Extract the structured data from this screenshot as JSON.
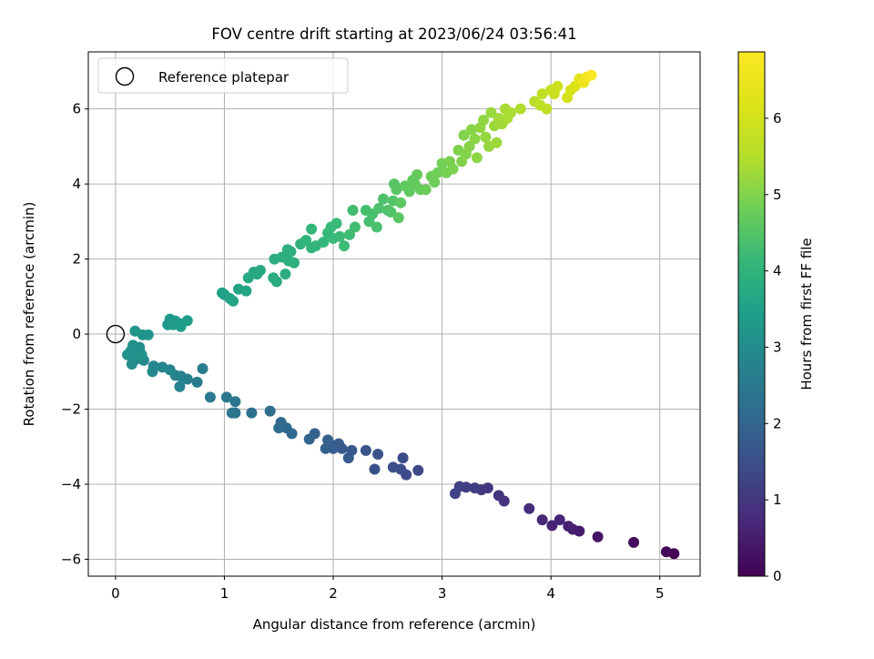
{
  "chart_data": {
    "type": "scatter",
    "title": "FOV centre drift starting at 2023/06/24 03:56:41",
    "xlabel": "Angular distance from reference (arcmin)",
    "ylabel": "Rotation from reference (arcmin)",
    "xlim": [
      -0.25,
      5.37
    ],
    "ylim": [
      -6.45,
      7.52
    ],
    "xticks": [
      0,
      1,
      2,
      3,
      4,
      5
    ],
    "yticks": [
      -6,
      -4,
      -2,
      0,
      2,
      4,
      6
    ],
    "x_tick_labels": [
      "0",
      "1",
      "2",
      "3",
      "4",
      "5"
    ],
    "y_tick_labels": [
      "−6",
      "−4",
      "−2",
      "0",
      "2",
      "4",
      "6"
    ],
    "grid": true,
    "legend": {
      "placement": "top-left",
      "entries": [
        "Reference platepar"
      ]
    },
    "reference_point": {
      "x": 0,
      "y": 0
    },
    "colorbar": {
      "label": "Hours from first FF file",
      "colormap": "viridis",
      "range": [
        0,
        6.87
      ],
      "ticks": [
        0,
        1,
        2,
        3,
        4,
        5,
        6
      ],
      "tick_labels": [
        "0",
        "1",
        "2",
        "3",
        "4",
        "5",
        "6"
      ]
    },
    "points": [
      {
        "x": 5.13,
        "y": -5.85,
        "c": 0.02
      },
      {
        "x": 5.06,
        "y": -5.8,
        "c": 0.08
      },
      {
        "x": 4.76,
        "y": -5.55,
        "c": 0.2
      },
      {
        "x": 4.43,
        "y": -5.4,
        "c": 0.33
      },
      {
        "x": 4.26,
        "y": -5.25,
        "c": 0.43
      },
      {
        "x": 4.2,
        "y": -5.2,
        "c": 0.5
      },
      {
        "x": 4.16,
        "y": -5.12,
        "c": 0.55
      },
      {
        "x": 4.01,
        "y": -5.1,
        "c": 0.62
      },
      {
        "x": 3.92,
        "y": -4.95,
        "c": 0.7
      },
      {
        "x": 4.08,
        "y": -4.95,
        "c": 0.66
      },
      {
        "x": 3.8,
        "y": -4.65,
        "c": 0.8
      },
      {
        "x": 3.57,
        "y": -4.45,
        "c": 0.9
      },
      {
        "x": 3.52,
        "y": -4.3,
        "c": 0.95
      },
      {
        "x": 3.42,
        "y": -4.1,
        "c": 1.02
      },
      {
        "x": 3.36,
        "y": -4.15,
        "c": 1.05
      },
      {
        "x": 3.3,
        "y": -4.1,
        "c": 1.1
      },
      {
        "x": 3.22,
        "y": -4.08,
        "c": 1.15
      },
      {
        "x": 3.16,
        "y": -4.06,
        "c": 1.2
      },
      {
        "x": 3.12,
        "y": -4.25,
        "c": 1.25
      },
      {
        "x": 2.78,
        "y": -3.63,
        "c": 1.35
      },
      {
        "x": 2.67,
        "y": -3.75,
        "c": 1.4
      },
      {
        "x": 2.62,
        "y": -3.6,
        "c": 1.45
      },
      {
        "x": 2.55,
        "y": -3.55,
        "c": 1.5
      },
      {
        "x": 2.38,
        "y": -3.6,
        "c": 1.55
      },
      {
        "x": 2.64,
        "y": -3.3,
        "c": 1.48
      },
      {
        "x": 2.41,
        "y": -3.2,
        "c": 1.6
      },
      {
        "x": 2.3,
        "y": -3.1,
        "c": 1.65
      },
      {
        "x": 2.17,
        "y": -3.1,
        "c": 1.7
      },
      {
        "x": 2.14,
        "y": -3.3,
        "c": 1.72
      },
      {
        "x": 2.08,
        "y": -3.05,
        "c": 1.76
      },
      {
        "x": 2.05,
        "y": -2.92,
        "c": 1.8
      },
      {
        "x": 1.98,
        "y": -2.95,
        "c": 1.84
      },
      {
        "x": 2.0,
        "y": -3.05,
        "c": 1.86
      },
      {
        "x": 1.93,
        "y": -3.05,
        "c": 1.88
      },
      {
        "x": 1.95,
        "y": -2.82,
        "c": 1.9
      },
      {
        "x": 1.83,
        "y": -2.65,
        "c": 1.95
      },
      {
        "x": 1.78,
        "y": -2.8,
        "c": 1.98
      },
      {
        "x": 1.62,
        "y": -2.65,
        "c": 2.05
      },
      {
        "x": 1.57,
        "y": -2.5,
        "c": 2.1
      },
      {
        "x": 1.52,
        "y": -2.35,
        "c": 2.15
      },
      {
        "x": 1.5,
        "y": -2.5,
        "c": 2.18
      },
      {
        "x": 1.42,
        "y": -2.05,
        "c": 2.22
      },
      {
        "x": 1.25,
        "y": -2.1,
        "c": 2.3
      },
      {
        "x": 1.1,
        "y": -2.1,
        "c": 2.38
      },
      {
        "x": 1.07,
        "y": -2.1,
        "c": 2.4
      },
      {
        "x": 1.1,
        "y": -1.8,
        "c": 2.42
      },
      {
        "x": 1.02,
        "y": -1.68,
        "c": 2.45
      },
      {
        "x": 0.87,
        "y": -1.68,
        "c": 2.5
      },
      {
        "x": 0.75,
        "y": -1.28,
        "c": 2.58
      },
      {
        "x": 0.8,
        "y": -0.92,
        "c": 2.62
      },
      {
        "x": 0.66,
        "y": -1.2,
        "c": 2.68
      },
      {
        "x": 0.6,
        "y": -1.12,
        "c": 2.72
      },
      {
        "x": 0.59,
        "y": -1.4,
        "c": 2.75
      },
      {
        "x": 0.55,
        "y": -1.1,
        "c": 2.78
      },
      {
        "x": 0.5,
        "y": -0.95,
        "c": 2.82
      },
      {
        "x": 0.43,
        "y": -0.88,
        "c": 2.86
      },
      {
        "x": 0.35,
        "y": -0.85,
        "c": 2.9
      },
      {
        "x": 0.34,
        "y": -1.0,
        "c": 2.92
      },
      {
        "x": 0.26,
        "y": -0.7,
        "c": 2.95
      },
      {
        "x": 0.21,
        "y": -0.65,
        "c": 2.97
      },
      {
        "x": 0.17,
        "y": -0.7,
        "c": 3.0
      },
      {
        "x": 0.22,
        "y": -0.45,
        "c": 3.02
      },
      {
        "x": 0.15,
        "y": -0.55,
        "c": 3.04
      },
      {
        "x": 0.11,
        "y": -0.55,
        "c": 3.06
      },
      {
        "x": 0.16,
        "y": -0.3,
        "c": 3.08
      },
      {
        "x": 0.22,
        "y": -0.35,
        "c": 3.1
      },
      {
        "x": 0.24,
        "y": -0.55,
        "c": 3.11
      },
      {
        "x": 0.19,
        "y": -0.42,
        "c": 3.12
      },
      {
        "x": 0.14,
        "y": -0.45,
        "c": 3.13
      },
      {
        "x": 0.15,
        "y": -0.8,
        "c": 3.03
      },
      {
        "x": 0.2,
        "y": -0.6,
        "c": 3.14
      },
      {
        "x": 0.25,
        "y": -0.02,
        "c": 3.2
      },
      {
        "x": 0.3,
        "y": -0.02,
        "c": 3.22
      },
      {
        "x": 0.18,
        "y": 0.08,
        "c": 3.24
      },
      {
        "x": 0.48,
        "y": 0.25,
        "c": 3.3
      },
      {
        "x": 0.5,
        "y": 0.4,
        "c": 3.32
      },
      {
        "x": 0.53,
        "y": 0.25,
        "c": 3.34
      },
      {
        "x": 0.55,
        "y": 0.35,
        "c": 3.36
      },
      {
        "x": 0.59,
        "y": 0.28,
        "c": 3.38
      },
      {
        "x": 0.6,
        "y": 0.2,
        "c": 3.4
      },
      {
        "x": 0.66,
        "y": 0.36,
        "c": 3.42
      },
      {
        "x": 0.98,
        "y": 1.1,
        "c": 3.5
      },
      {
        "x": 1.0,
        "y": 1.05,
        "c": 3.52
      },
      {
        "x": 1.05,
        "y": 0.95,
        "c": 3.55
      },
      {
        "x": 1.08,
        "y": 0.88,
        "c": 3.57
      },
      {
        "x": 1.13,
        "y": 1.2,
        "c": 3.6
      },
      {
        "x": 1.2,
        "y": 1.15,
        "c": 3.63
      },
      {
        "x": 1.22,
        "y": 1.5,
        "c": 3.67
      },
      {
        "x": 1.27,
        "y": 1.65,
        "c": 3.7
      },
      {
        "x": 1.3,
        "y": 1.6,
        "c": 3.72
      },
      {
        "x": 1.33,
        "y": 1.7,
        "c": 3.74
      },
      {
        "x": 1.45,
        "y": 1.5,
        "c": 3.78
      },
      {
        "x": 1.48,
        "y": 1.4,
        "c": 3.8
      },
      {
        "x": 1.46,
        "y": 2.0,
        "c": 3.83
      },
      {
        "x": 1.53,
        "y": 2.05,
        "c": 3.85
      },
      {
        "x": 1.56,
        "y": 1.6,
        "c": 3.86
      },
      {
        "x": 1.59,
        "y": 1.95,
        "c": 3.88
      },
      {
        "x": 1.58,
        "y": 2.25,
        "c": 3.9
      },
      {
        "x": 1.61,
        "y": 2.2,
        "c": 3.92
      },
      {
        "x": 1.64,
        "y": 1.9,
        "c": 3.94
      },
      {
        "x": 1.7,
        "y": 2.4,
        "c": 3.97
      },
      {
        "x": 1.75,
        "y": 2.5,
        "c": 4.0
      },
      {
        "x": 1.8,
        "y": 2.3,
        "c": 4.02
      },
      {
        "x": 1.84,
        "y": 2.35,
        "c": 4.05
      },
      {
        "x": 1.8,
        "y": 2.8,
        "c": 4.08
      },
      {
        "x": 1.91,
        "y": 2.45,
        "c": 4.1
      },
      {
        "x": 1.95,
        "y": 2.7,
        "c": 4.12
      },
      {
        "x": 1.98,
        "y": 2.85,
        "c": 4.14
      },
      {
        "x": 2.0,
        "y": 2.55,
        "c": 4.16
      },
      {
        "x": 2.03,
        "y": 2.95,
        "c": 4.18
      },
      {
        "x": 2.06,
        "y": 2.6,
        "c": 4.2
      },
      {
        "x": 2.1,
        "y": 2.35,
        "c": 4.22
      },
      {
        "x": 2.15,
        "y": 2.65,
        "c": 4.25
      },
      {
        "x": 2.2,
        "y": 2.85,
        "c": 4.27
      },
      {
        "x": 2.18,
        "y": 3.3,
        "c": 4.28
      },
      {
        "x": 2.3,
        "y": 3.3,
        "c": 4.32
      },
      {
        "x": 2.33,
        "y": 3.0,
        "c": 4.34
      },
      {
        "x": 2.36,
        "y": 3.2,
        "c": 4.36
      },
      {
        "x": 2.4,
        "y": 2.85,
        "c": 4.38
      },
      {
        "x": 2.42,
        "y": 3.35,
        "c": 4.4
      },
      {
        "x": 2.46,
        "y": 3.6,
        "c": 4.42
      },
      {
        "x": 2.5,
        "y": 3.3,
        "c": 4.45
      },
      {
        "x": 2.53,
        "y": 3.25,
        "c": 4.47
      },
      {
        "x": 2.55,
        "y": 3.55,
        "c": 4.5
      },
      {
        "x": 2.56,
        "y": 4.0,
        "c": 4.53
      },
      {
        "x": 2.58,
        "y": 3.85,
        "c": 4.55
      },
      {
        "x": 2.6,
        "y": 3.1,
        "c": 4.57
      },
      {
        "x": 2.62,
        "y": 3.5,
        "c": 4.59
      },
      {
        "x": 2.66,
        "y": 3.95,
        "c": 4.62
      },
      {
        "x": 2.7,
        "y": 3.8,
        "c": 4.64
      },
      {
        "x": 2.73,
        "y": 4.1,
        "c": 4.66
      },
      {
        "x": 2.75,
        "y": 4.0,
        "c": 4.68
      },
      {
        "x": 2.77,
        "y": 4.25,
        "c": 4.7
      },
      {
        "x": 2.8,
        "y": 3.85,
        "c": 4.72
      },
      {
        "x": 2.85,
        "y": 3.85,
        "c": 4.75
      },
      {
        "x": 2.9,
        "y": 4.2,
        "c": 4.78
      },
      {
        "x": 2.93,
        "y": 4.05,
        "c": 4.8
      },
      {
        "x": 2.96,
        "y": 4.3,
        "c": 4.83
      },
      {
        "x": 3.0,
        "y": 4.55,
        "c": 4.86
      },
      {
        "x": 3.04,
        "y": 4.3,
        "c": 4.88
      },
      {
        "x": 3.07,
        "y": 4.6,
        "c": 4.91
      },
      {
        "x": 3.1,
        "y": 4.4,
        "c": 4.93
      },
      {
        "x": 3.15,
        "y": 4.9,
        "c": 4.96
      },
      {
        "x": 3.18,
        "y": 4.6,
        "c": 4.98
      },
      {
        "x": 3.2,
        "y": 5.3,
        "c": 5.0
      },
      {
        "x": 3.22,
        "y": 4.8,
        "c": 5.02
      },
      {
        "x": 3.25,
        "y": 5.0,
        "c": 5.04
      },
      {
        "x": 3.27,
        "y": 5.45,
        "c": 5.06
      },
      {
        "x": 3.3,
        "y": 5.2,
        "c": 5.08
      },
      {
        "x": 3.32,
        "y": 4.7,
        "c": 5.1
      },
      {
        "x": 3.35,
        "y": 5.5,
        "c": 5.13
      },
      {
        "x": 3.38,
        "y": 5.7,
        "c": 5.15
      },
      {
        "x": 3.4,
        "y": 5.25,
        "c": 5.18
      },
      {
        "x": 3.43,
        "y": 5.0,
        "c": 5.2
      },
      {
        "x": 3.45,
        "y": 5.9,
        "c": 5.22
      },
      {
        "x": 3.48,
        "y": 5.55,
        "c": 5.25
      },
      {
        "x": 3.5,
        "y": 5.1,
        "c": 5.27
      },
      {
        "x": 3.52,
        "y": 5.75,
        "c": 5.3
      },
      {
        "x": 3.55,
        "y": 5.6,
        "c": 5.32
      },
      {
        "x": 3.58,
        "y": 6.0,
        "c": 5.35
      },
      {
        "x": 3.6,
        "y": 5.75,
        "c": 5.38
      },
      {
        "x": 3.63,
        "y": 5.9,
        "c": 5.4
      },
      {
        "x": 3.72,
        "y": 6.0,
        "c": 5.45
      },
      {
        "x": 3.85,
        "y": 6.2,
        "c": 5.55
      },
      {
        "x": 3.9,
        "y": 6.1,
        "c": 5.62
      },
      {
        "x": 3.92,
        "y": 6.4,
        "c": 5.67
      },
      {
        "x": 3.96,
        "y": 6.0,
        "c": 5.72
      },
      {
        "x": 4.0,
        "y": 6.5,
        "c": 5.8
      },
      {
        "x": 4.03,
        "y": 6.4,
        "c": 5.86
      },
      {
        "x": 4.06,
        "y": 6.6,
        "c": 5.92
      },
      {
        "x": 4.15,
        "y": 6.3,
        "c": 6.05
      },
      {
        "x": 4.18,
        "y": 6.5,
        "c": 6.12
      },
      {
        "x": 4.22,
        "y": 6.6,
        "c": 6.2
      },
      {
        "x": 4.26,
        "y": 6.8,
        "c": 6.35
      },
      {
        "x": 4.3,
        "y": 6.7,
        "c": 6.5
      },
      {
        "x": 4.33,
        "y": 6.85,
        "c": 6.65
      },
      {
        "x": 4.37,
        "y": 6.9,
        "c": 6.8
      }
    ]
  }
}
